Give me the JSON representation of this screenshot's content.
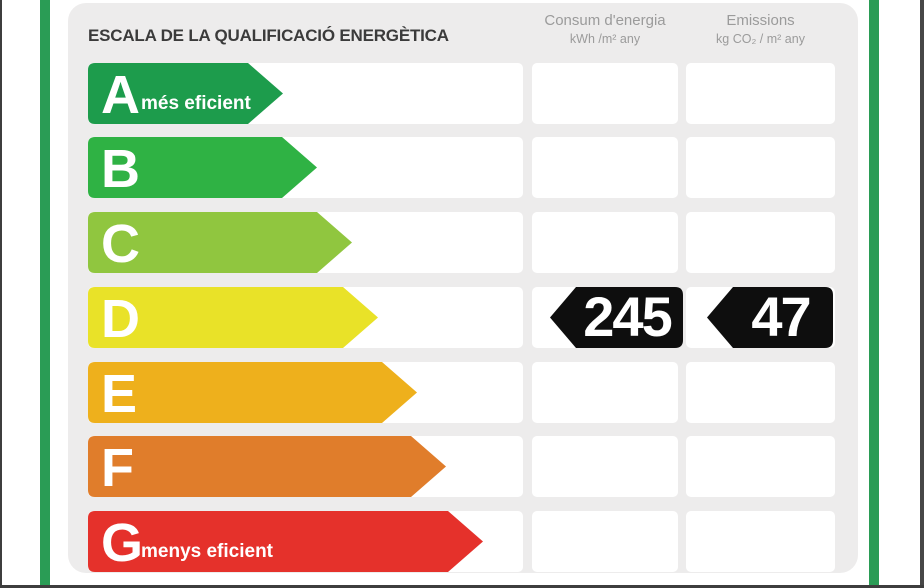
{
  "header": {
    "title": "ESCALA DE LA QUALIFICACIÓ ENERGÈTICA",
    "columns": [
      {
        "label": "Consum d'energia",
        "unit": "kWh /m²  any"
      },
      {
        "label": "Emissions",
        "unit": "kg CO₂  / m²  any"
      }
    ]
  },
  "scale": {
    "grades": [
      {
        "letter": "A",
        "note": "més eficient",
        "color": "#1d9c4c",
        "arrow_width": 195
      },
      {
        "letter": "B",
        "note": "",
        "color": "#2fb244",
        "arrow_width": 229
      },
      {
        "letter": "C",
        "note": "",
        "color": "#90c63f",
        "arrow_width": 264
      },
      {
        "letter": "D",
        "note": "",
        "color": "#e9e228",
        "arrow_width": 290
      },
      {
        "letter": "E",
        "note": "",
        "color": "#eeb01c",
        "arrow_width": 329
      },
      {
        "letter": "F",
        "note": "",
        "color": "#e07d2b",
        "arrow_width": 358
      },
      {
        "letter": "G",
        "note": "menys eficient",
        "color": "#e5312b",
        "arrow_width": 395
      }
    ]
  },
  "rating": {
    "grade": "D",
    "consumption_value": "245",
    "emissions_value": "47",
    "badge_color": "#0e0e0e"
  },
  "frame": {
    "stripe_color": "#2a9c55",
    "panel_color": "#edecec"
  },
  "chart_data": {
    "type": "bar",
    "title": "ESCALA DE LA QUALIFICACIÓ ENERGÈTICA",
    "categories": [
      "A",
      "B",
      "C",
      "D",
      "E",
      "F",
      "G"
    ],
    "series": [
      {
        "name": "Consum d'energia (kWh/m² any)",
        "values": [
          null,
          null,
          null,
          245,
          null,
          null,
          null
        ]
      },
      {
        "name": "Emissions (kg CO₂/m² any)",
        "values": [
          null,
          null,
          null,
          47,
          null,
          null,
          null
        ]
      }
    ],
    "annotations": [
      "A = més eficient",
      "G = menys eficient",
      "assigned grade: D"
    ],
    "legend_position": "none",
    "grid": false
  }
}
